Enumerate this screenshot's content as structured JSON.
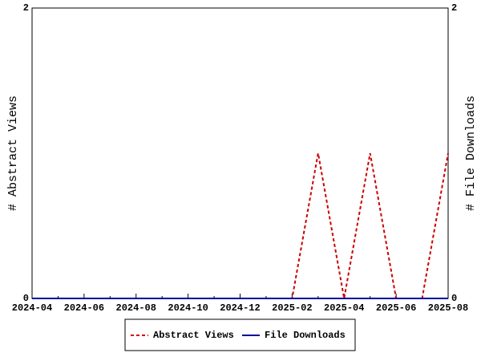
{
  "chart_data": {
    "type": "line",
    "categories": [
      "2024-04",
      null,
      "2024-06",
      null,
      "2024-08",
      null,
      "2024-10",
      null,
      "2024-12",
      null,
      "2025-02",
      null,
      "2025-04",
      null,
      "2025-06",
      null,
      "2025-08"
    ],
    "series": [
      {
        "name": "Abstract Views",
        "color": "#cc0000",
        "dashed": true,
        "values": [
          0,
          0,
          0,
          0,
          0,
          0,
          0,
          0,
          0,
          0,
          0,
          1,
          0,
          1,
          0,
          0,
          1
        ]
      },
      {
        "name": "File Downloads",
        "color": "#0000a0",
        "dashed": false,
        "axis": "y2",
        "values": [
          0,
          0,
          0,
          0,
          0,
          0,
          0,
          0,
          0,
          0,
          0,
          0,
          0,
          0,
          0,
          0,
          0
        ]
      }
    ],
    "ylabel": "# Abstract Views",
    "y2label": "# File Downloads",
    "ylim": [
      0,
      2
    ],
    "yticks": [
      0,
      2
    ],
    "y2lim": [
      0,
      2
    ],
    "y2ticks": [
      0,
      2
    ]
  }
}
